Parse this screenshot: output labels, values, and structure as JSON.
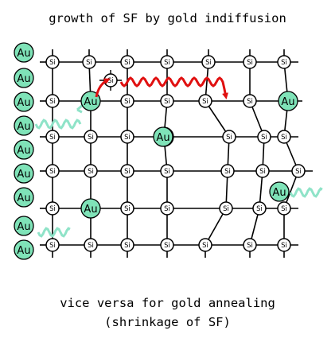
{
  "title": "growth of SF by gold indiffusion",
  "footer_line1": "vice versa for gold annealing",
  "footer_line2": "(shrinkage of SF)",
  "atom_labels": {
    "silicon": "Si",
    "gold": "Au"
  },
  "colors": {
    "gold_fill": "#7fe3b8",
    "silicon_fill": "#ffffff",
    "bond": "#000000",
    "stacking_fault_arrow": "#e01010",
    "diffusion_wave": "#8fe3c8"
  }
}
